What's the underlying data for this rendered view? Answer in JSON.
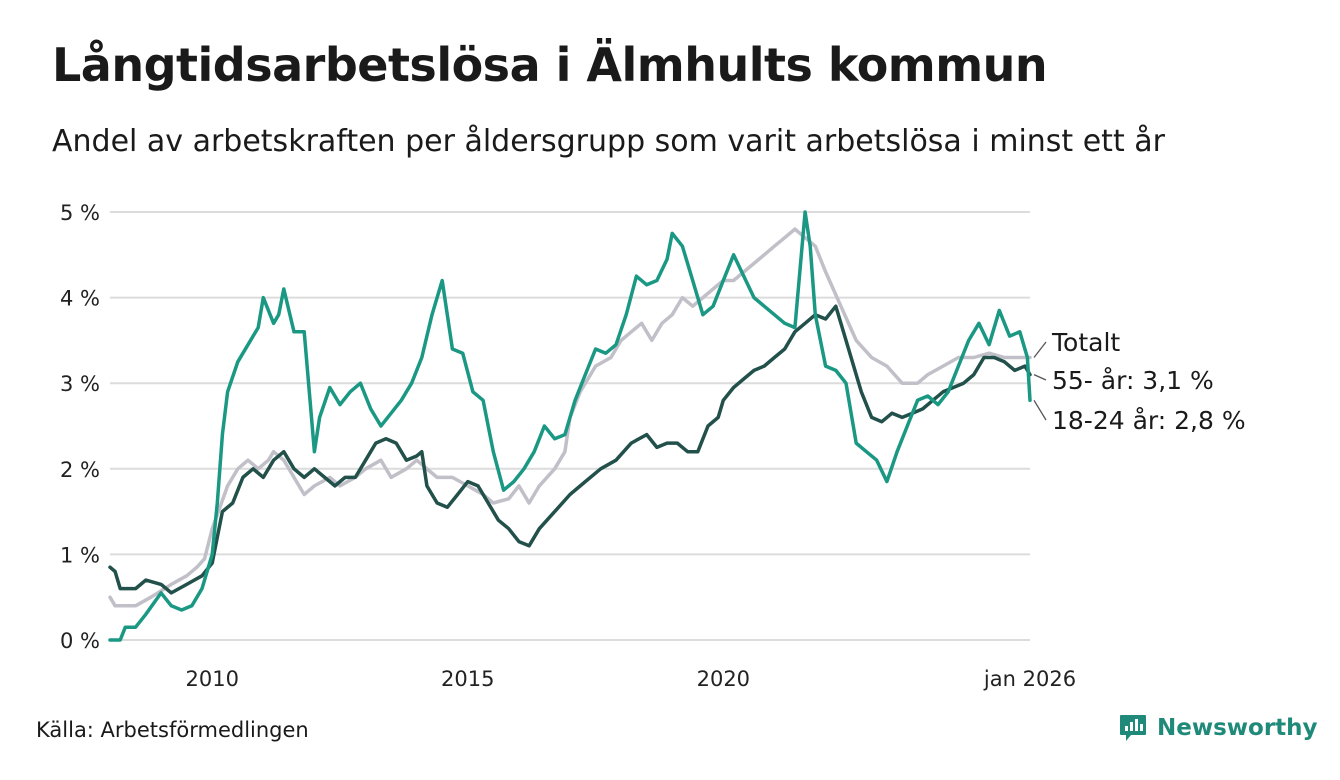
{
  "header": {
    "title": "Långtidsarbetslösa i Älmhults kommun",
    "subtitle": "Andel av arbetskraften per åldersgrupp som varit arbetslösa i minst ett år"
  },
  "footer": {
    "source": "Källa: Arbetsförmedlingen",
    "brand": "Newsworthy"
  },
  "colors": {
    "totalt": "#c1bfc8",
    "age55": "#22504a",
    "age18_24": "#1a9883",
    "grid": "#dcdcdc",
    "brand": "#1f8a7a"
  },
  "chart_data": {
    "type": "line",
    "title": "Långtidsarbetslösa i Älmhults kommun",
    "xlabel": "",
    "ylabel": "",
    "ylim": [
      0,
      5
    ],
    "yticks": [
      {
        "value": 0,
        "label": "0 %"
      },
      {
        "value": 1,
        "label": "1 %"
      },
      {
        "value": 2,
        "label": "2 %"
      },
      {
        "value": 3,
        "label": "3 %"
      },
      {
        "value": 4,
        "label": "4 %"
      },
      {
        "value": 5,
        "label": "5 %"
      }
    ],
    "xrange": [
      2008.0,
      2026.0
    ],
    "xticks": [
      {
        "value": 2010.0,
        "label": "2010"
      },
      {
        "value": 2015.0,
        "label": "2015"
      },
      {
        "value": 2020.0,
        "label": "2020"
      },
      {
        "value": 2026.0,
        "label": "jan 2026"
      }
    ],
    "grid": true,
    "series": [
      {
        "name": "Totalt",
        "label": "Totalt",
        "color": "#c1bfc8",
        "points": [
          [
            2008.0,
            0.5
          ],
          [
            2008.1,
            0.4
          ],
          [
            2008.5,
            0.4
          ],
          [
            2008.8,
            0.5
          ],
          [
            2009.2,
            0.65
          ],
          [
            2009.5,
            0.75
          ],
          [
            2009.7,
            0.85
          ],
          [
            2009.85,
            0.95
          ],
          [
            2010.0,
            1.3
          ],
          [
            2010.3,
            1.8
          ],
          [
            2010.5,
            2.0
          ],
          [
            2010.7,
            2.1
          ],
          [
            2010.9,
            2.0
          ],
          [
            2011.1,
            2.1
          ],
          [
            2011.2,
            2.2
          ],
          [
            2011.4,
            2.1
          ],
          [
            2011.6,
            1.9
          ],
          [
            2011.8,
            1.7
          ],
          [
            2012.0,
            1.8
          ],
          [
            2012.3,
            1.9
          ],
          [
            2012.5,
            1.8
          ],
          [
            2012.8,
            1.9
          ],
          [
            2013.0,
            2.0
          ],
          [
            2013.3,
            2.1
          ],
          [
            2013.5,
            1.9
          ],
          [
            2013.8,
            2.0
          ],
          [
            2014.0,
            2.1
          ],
          [
            2014.2,
            2.0
          ],
          [
            2014.4,
            1.9
          ],
          [
            2014.7,
            1.9
          ],
          [
            2015.0,
            1.8
          ],
          [
            2015.3,
            1.7
          ],
          [
            2015.5,
            1.6
          ],
          [
            2015.8,
            1.65
          ],
          [
            2016.0,
            1.8
          ],
          [
            2016.2,
            1.6
          ],
          [
            2016.4,
            1.8
          ],
          [
            2016.7,
            2.0
          ],
          [
            2016.9,
            2.2
          ],
          [
            2017.0,
            2.6
          ],
          [
            2017.2,
            2.9
          ],
          [
            2017.5,
            3.2
          ],
          [
            2017.8,
            3.3
          ],
          [
            2018.0,
            3.5
          ],
          [
            2018.2,
            3.6
          ],
          [
            2018.4,
            3.7
          ],
          [
            2018.6,
            3.5
          ],
          [
            2018.8,
            3.7
          ],
          [
            2019.0,
            3.8
          ],
          [
            2019.2,
            4.0
          ],
          [
            2019.4,
            3.9
          ],
          [
            2019.6,
            4.0
          ],
          [
            2019.8,
            4.1
          ],
          [
            2020.0,
            4.2
          ],
          [
            2020.2,
            4.2
          ],
          [
            2020.4,
            4.3
          ],
          [
            2020.6,
            4.4
          ],
          [
            2020.8,
            4.5
          ],
          [
            2021.0,
            4.6
          ],
          [
            2021.2,
            4.7
          ],
          [
            2021.4,
            4.8
          ],
          [
            2021.6,
            4.7
          ],
          [
            2021.8,
            4.6
          ],
          [
            2022.0,
            4.3
          ],
          [
            2022.3,
            3.9
          ],
          [
            2022.6,
            3.5
          ],
          [
            2022.9,
            3.3
          ],
          [
            2023.2,
            3.2
          ],
          [
            2023.5,
            3.0
          ],
          [
            2023.8,
            3.0
          ],
          [
            2024.0,
            3.1
          ],
          [
            2024.3,
            3.2
          ],
          [
            2024.6,
            3.3
          ],
          [
            2024.9,
            3.3
          ],
          [
            2025.2,
            3.35
          ],
          [
            2025.5,
            3.3
          ],
          [
            2025.8,
            3.3
          ],
          [
            2026.0,
            3.3
          ]
        ]
      },
      {
        "name": "55- år",
        "label": "55- år: 3,1 %",
        "color": "#22504a",
        "points": [
          [
            2008.0,
            0.85
          ],
          [
            2008.1,
            0.8
          ],
          [
            2008.2,
            0.6
          ],
          [
            2008.5,
            0.6
          ],
          [
            2008.7,
            0.7
          ],
          [
            2009.0,
            0.65
          ],
          [
            2009.2,
            0.55
          ],
          [
            2009.5,
            0.65
          ],
          [
            2009.8,
            0.75
          ],
          [
            2010.0,
            0.9
          ],
          [
            2010.1,
            1.2
          ],
          [
            2010.2,
            1.5
          ],
          [
            2010.4,
            1.6
          ],
          [
            2010.6,
            1.9
          ],
          [
            2010.8,
            2.0
          ],
          [
            2011.0,
            1.9
          ],
          [
            2011.2,
            2.1
          ],
          [
            2011.4,
            2.2
          ],
          [
            2011.6,
            2.0
          ],
          [
            2011.8,
            1.9
          ],
          [
            2012.0,
            2.0
          ],
          [
            2012.2,
            1.9
          ],
          [
            2012.4,
            1.8
          ],
          [
            2012.6,
            1.9
          ],
          [
            2012.8,
            1.9
          ],
          [
            2013.0,
            2.1
          ],
          [
            2013.2,
            2.3
          ],
          [
            2013.4,
            2.35
          ],
          [
            2013.6,
            2.3
          ],
          [
            2013.8,
            2.1
          ],
          [
            2014.0,
            2.15
          ],
          [
            2014.1,
            2.2
          ],
          [
            2014.2,
            1.8
          ],
          [
            2014.4,
            1.6
          ],
          [
            2014.6,
            1.55
          ],
          [
            2014.8,
            1.7
          ],
          [
            2015.0,
            1.85
          ],
          [
            2015.2,
            1.8
          ],
          [
            2015.4,
            1.6
          ],
          [
            2015.6,
            1.4
          ],
          [
            2015.8,
            1.3
          ],
          [
            2016.0,
            1.15
          ],
          [
            2016.2,
            1.1
          ],
          [
            2016.4,
            1.3
          ],
          [
            2016.7,
            1.5
          ],
          [
            2017.0,
            1.7
          ],
          [
            2017.3,
            1.85
          ],
          [
            2017.6,
            2.0
          ],
          [
            2017.9,
            2.1
          ],
          [
            2018.2,
            2.3
          ],
          [
            2018.5,
            2.4
          ],
          [
            2018.7,
            2.25
          ],
          [
            2018.9,
            2.3
          ],
          [
            2019.1,
            2.3
          ],
          [
            2019.3,
            2.2
          ],
          [
            2019.5,
            2.2
          ],
          [
            2019.7,
            2.5
          ],
          [
            2019.9,
            2.6
          ],
          [
            2020.0,
            2.8
          ],
          [
            2020.2,
            2.95
          ],
          [
            2020.4,
            3.05
          ],
          [
            2020.6,
            3.15
          ],
          [
            2020.8,
            3.2
          ],
          [
            2021.0,
            3.3
          ],
          [
            2021.2,
            3.4
          ],
          [
            2021.4,
            3.6
          ],
          [
            2021.6,
            3.7
          ],
          [
            2021.8,
            3.8
          ],
          [
            2022.0,
            3.75
          ],
          [
            2022.2,
            3.9
          ],
          [
            2022.3,
            3.7
          ],
          [
            2022.5,
            3.3
          ],
          [
            2022.7,
            2.9
          ],
          [
            2022.9,
            2.6
          ],
          [
            2023.1,
            2.55
          ],
          [
            2023.3,
            2.65
          ],
          [
            2023.5,
            2.6
          ],
          [
            2023.7,
            2.65
          ],
          [
            2023.9,
            2.7
          ],
          [
            2024.1,
            2.8
          ],
          [
            2024.3,
            2.9
          ],
          [
            2024.5,
            2.95
          ],
          [
            2024.7,
            3.0
          ],
          [
            2024.9,
            3.1
          ],
          [
            2025.1,
            3.3
          ],
          [
            2025.3,
            3.3
          ],
          [
            2025.5,
            3.25
          ],
          [
            2025.7,
            3.15
          ],
          [
            2025.9,
            3.2
          ],
          [
            2026.0,
            3.1
          ]
        ]
      },
      {
        "name": "18-24 år",
        "label": "18-24 år: 2,8 %",
        "color": "#1a9883",
        "points": [
          [
            2008.0,
            0.0
          ],
          [
            2008.2,
            0.0
          ],
          [
            2008.3,
            0.15
          ],
          [
            2008.5,
            0.15
          ],
          [
            2008.7,
            0.3
          ],
          [
            2009.0,
            0.55
          ],
          [
            2009.2,
            0.4
          ],
          [
            2009.4,
            0.35
          ],
          [
            2009.6,
            0.4
          ],
          [
            2009.8,
            0.6
          ],
          [
            2010.0,
            1.0
          ],
          [
            2010.1,
            1.6
          ],
          [
            2010.2,
            2.4
          ],
          [
            2010.3,
            2.9
          ],
          [
            2010.5,
            3.25
          ],
          [
            2010.7,
            3.45
          ],
          [
            2010.9,
            3.65
          ],
          [
            2011.0,
            4.0
          ],
          [
            2011.2,
            3.7
          ],
          [
            2011.3,
            3.8
          ],
          [
            2011.4,
            4.1
          ],
          [
            2011.6,
            3.6
          ],
          [
            2011.8,
            3.6
          ],
          [
            2012.0,
            2.2
          ],
          [
            2012.1,
            2.6
          ],
          [
            2012.3,
            2.95
          ],
          [
            2012.5,
            2.75
          ],
          [
            2012.7,
            2.9
          ],
          [
            2012.9,
            3.0
          ],
          [
            2013.1,
            2.7
          ],
          [
            2013.3,
            2.5
          ],
          [
            2013.5,
            2.65
          ],
          [
            2013.7,
            2.8
          ],
          [
            2013.9,
            3.0
          ],
          [
            2014.1,
            3.3
          ],
          [
            2014.3,
            3.8
          ],
          [
            2014.5,
            4.2
          ],
          [
            2014.6,
            3.8
          ],
          [
            2014.7,
            3.4
          ],
          [
            2014.9,
            3.35
          ],
          [
            2015.1,
            2.9
          ],
          [
            2015.3,
            2.8
          ],
          [
            2015.5,
            2.2
          ],
          [
            2015.7,
            1.75
          ],
          [
            2015.9,
            1.85
          ],
          [
            2016.1,
            2.0
          ],
          [
            2016.3,
            2.2
          ],
          [
            2016.5,
            2.5
          ],
          [
            2016.7,
            2.35
          ],
          [
            2016.9,
            2.4
          ],
          [
            2017.1,
            2.8
          ],
          [
            2017.3,
            3.1
          ],
          [
            2017.5,
            3.4
          ],
          [
            2017.7,
            3.35
          ],
          [
            2017.9,
            3.45
          ],
          [
            2018.1,
            3.8
          ],
          [
            2018.3,
            4.25
          ],
          [
            2018.5,
            4.15
          ],
          [
            2018.7,
            4.2
          ],
          [
            2018.9,
            4.45
          ],
          [
            2019.0,
            4.75
          ],
          [
            2019.2,
            4.6
          ],
          [
            2019.4,
            4.2
          ],
          [
            2019.6,
            3.8
          ],
          [
            2019.8,
            3.9
          ],
          [
            2020.0,
            4.2
          ],
          [
            2020.2,
            4.5
          ],
          [
            2020.4,
            4.25
          ],
          [
            2020.6,
            4.0
          ],
          [
            2020.8,
            3.9
          ],
          [
            2021.0,
            3.8
          ],
          [
            2021.2,
            3.7
          ],
          [
            2021.4,
            3.65
          ],
          [
            2021.6,
            5.0
          ],
          [
            2021.7,
            4.6
          ],
          [
            2021.8,
            3.8
          ],
          [
            2022.0,
            3.2
          ],
          [
            2022.2,
            3.15
          ],
          [
            2022.4,
            3.0
          ],
          [
            2022.6,
            2.3
          ],
          [
            2022.8,
            2.2
          ],
          [
            2023.0,
            2.1
          ],
          [
            2023.2,
            1.85
          ],
          [
            2023.4,
            2.2
          ],
          [
            2023.6,
            2.5
          ],
          [
            2023.8,
            2.8
          ],
          [
            2024.0,
            2.85
          ],
          [
            2024.2,
            2.75
          ],
          [
            2024.4,
            2.9
          ],
          [
            2024.6,
            3.2
          ],
          [
            2024.8,
            3.5
          ],
          [
            2025.0,
            3.7
          ],
          [
            2025.2,
            3.45
          ],
          [
            2025.4,
            3.85
          ],
          [
            2025.6,
            3.55
          ],
          [
            2025.8,
            3.6
          ],
          [
            2025.95,
            3.3
          ],
          [
            2026.0,
            2.8
          ]
        ]
      }
    ]
  }
}
